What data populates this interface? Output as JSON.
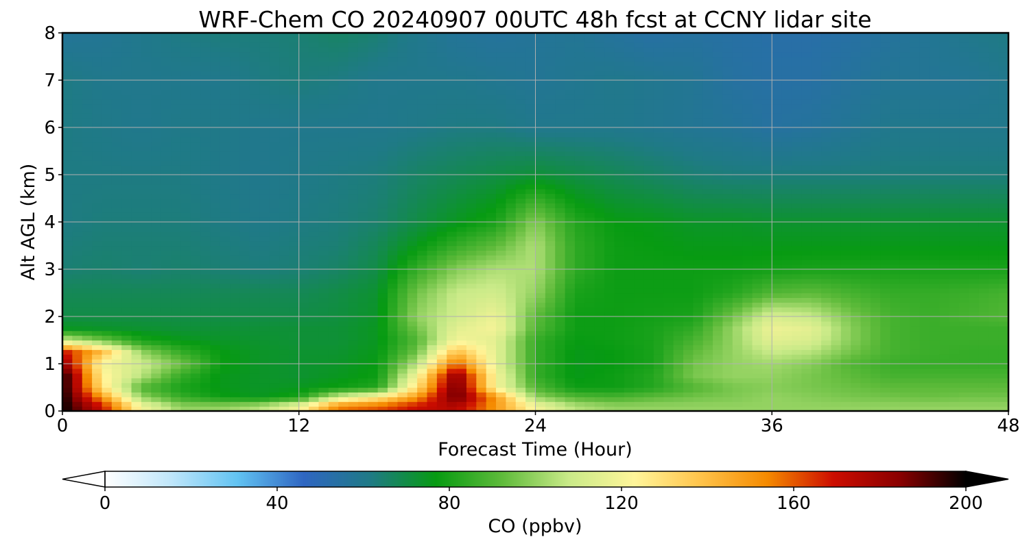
{
  "chart_data": {
    "type": "heatmap",
    "title": "WRF-Chem CO  20240907 00UTC 48h fcst at CCNY lidar site",
    "xlabel": "Forecast Time (Hour)",
    "ylabel": "Alt AGL (km)",
    "xlim": [
      0,
      48
    ],
    "ylim": [
      0,
      8
    ],
    "xticks": [
      "0",
      "12",
      "24",
      "36",
      "48"
    ],
    "yticks": [
      "0",
      "1",
      "2",
      "3",
      "4",
      "5",
      "6",
      "7",
      "8"
    ],
    "grid": true,
    "colorbar": {
      "label": "CO  (ppbv)",
      "range": [
        0,
        200
      ],
      "extend": "both",
      "ticks": [
        "0",
        "40",
        "80",
        "120",
        "160",
        "200"
      ],
      "colors": [
        "#ffffff",
        "#bfe6fa",
        "#62c3f2",
        "#2f66c2",
        "#1f7a86",
        "#079b12",
        "#5fbb3b",
        "#c9ea88",
        "#fff59a",
        "#ffc34a",
        "#f58a00",
        "#cc0d00",
        "#8a0000",
        "#000000"
      ]
    },
    "x": [
      0,
      2,
      4,
      6,
      8,
      10,
      12,
      14,
      16,
      18,
      20,
      22,
      24,
      26,
      28,
      30,
      32,
      34,
      36,
      38,
      40,
      42,
      44,
      46,
      48
    ],
    "y": [
      0.1,
      0.3,
      0.5,
      0.75,
      1.0,
      1.25,
      1.5,
      1.75,
      2.0,
      2.5,
      3.0,
      3.5,
      4.0,
      5.0,
      6.0,
      7.0,
      8.0
    ],
    "z": [
      [
        200,
        170,
        120,
        100,
        100,
        105,
        120,
        155,
        160,
        170,
        175,
        150,
        120,
        105,
        100,
        100,
        100,
        100,
        100,
        100,
        100,
        100,
        100,
        100,
        100
      ],
      [
        200,
        150,
        100,
        85,
        78,
        75,
        80,
        110,
        125,
        150,
        190,
        150,
        100,
        90,
        88,
        92,
        95,
        97,
        100,
        98,
        96,
        95,
        94,
        95,
        95
      ],
      [
        200,
        130,
        90,
        80,
        76,
        74,
        75,
        78,
        82,
        130,
        190,
        120,
        90,
        78,
        78,
        82,
        90,
        96,
        98,
        96,
        94,
        92,
        92,
        92,
        92
      ],
      [
        200,
        125,
        105,
        85,
        76,
        74,
        73,
        75,
        78,
        120,
        185,
        120,
        85,
        76,
        78,
        82,
        96,
        100,
        100,
        96,
        92,
        88,
        88,
        88,
        88
      ],
      [
        185,
        120,
        110,
        95,
        78,
        74,
        73,
        74,
        77,
        105,
        160,
        115,
        85,
        76,
        77,
        80,
        95,
        100,
        102,
        98,
        90,
        86,
        85,
        85,
        85
      ],
      [
        170,
        140,
        100,
        85,
        77,
        74,
        73,
        73,
        76,
        95,
        140,
        115,
        85,
        76,
        77,
        80,
        92,
        100,
        108,
        105,
        95,
        88,
        86,
        85,
        85
      ],
      [
        110,
        95,
        80,
        76,
        74,
        73,
        72,
        72,
        75,
        90,
        120,
        115,
        85,
        77,
        78,
        80,
        88,
        100,
        115,
        112,
        98,
        88,
        86,
        86,
        86
      ],
      [
        75,
        74,
        73,
        72,
        72,
        72,
        72,
        72,
        75,
        95,
        115,
        120,
        90,
        78,
        78,
        80,
        84,
        100,
        118,
        115,
        98,
        88,
        86,
        86,
        86
      ],
      [
        70,
        70,
        70,
        70,
        70,
        70,
        70,
        71,
        74,
        100,
        110,
        118,
        92,
        78,
        78,
        79,
        80,
        95,
        112,
        108,
        96,
        88,
        86,
        88,
        90
      ],
      [
        68,
        68,
        68,
        68,
        68,
        68,
        68,
        70,
        73,
        95,
        108,
        110,
        100,
        80,
        78,
        78,
        78,
        82,
        90,
        92,
        88,
        85,
        85,
        86,
        88
      ],
      [
        64,
        65,
        64,
        65,
        64,
        63,
        64,
        66,
        70,
        85,
        98,
        104,
        104,
        84,
        78,
        78,
        78,
        78,
        79,
        80,
        80,
        80,
        80,
        80,
        80
      ],
      [
        63,
        64,
        64,
        64,
        63,
        62,
        63,
        64,
        68,
        76,
        85,
        92,
        104,
        84,
        78,
        77,
        76,
        76,
        76,
        76,
        76,
        76,
        76,
        76,
        76
      ],
      [
        62,
        63,
        63,
        63,
        62,
        61,
        62,
        63,
        65,
        70,
        75,
        80,
        98,
        82,
        77,
        76,
        74,
        74,
        73,
        73,
        73,
        73,
        73,
        73,
        73
      ],
      [
        62,
        62,
        62,
        62,
        61,
        60,
        61,
        62,
        63,
        66,
        68,
        70,
        72,
        70,
        68,
        66,
        64,
        63,
        63,
        63,
        63,
        63,
        63,
        63,
        63
      ],
      [
        62,
        61,
        60,
        61,
        61,
        60,
        60,
        60,
        60,
        61,
        62,
        62,
        60,
        60,
        60,
        59,
        58,
        57,
        55,
        56,
        58,
        60,
        60,
        60,
        60
      ],
      [
        62,
        60,
        60,
        60,
        60,
        62,
        63,
        62,
        60,
        60,
        60,
        59,
        58,
        59,
        60,
        59,
        58,
        55,
        54,
        54,
        56,
        58,
        58,
        58,
        60
      ],
      [
        57,
        58,
        60,
        62,
        63,
        63,
        64,
        66,
        64,
        60,
        57,
        56,
        57,
        58,
        56,
        54,
        55,
        54,
        53,
        53,
        54,
        56,
        58,
        60,
        62
      ]
    ]
  }
}
